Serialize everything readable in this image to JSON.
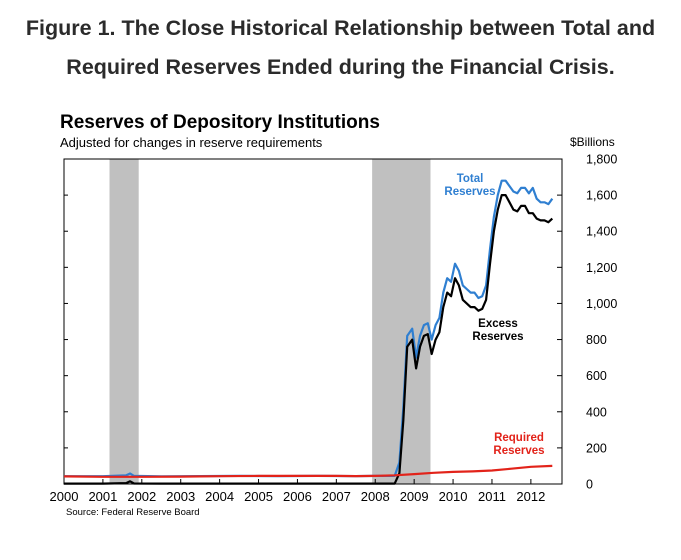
{
  "figure": {
    "title_line1": "Figure 1. The Close Historical Relationship between Total and",
    "title_line2": "Required Reserves Ended during the Financial Crisis."
  },
  "chart_data": {
    "type": "line",
    "title": "Reserves of Depository Institutions",
    "subtitle": "Adjusted for changes in reserve requirements",
    "y_unit": "$Billions",
    "source": "Source:  Federal Reserve Board",
    "xlim": [
      2000.0,
      2012.8
    ],
    "ylim": [
      0,
      1800
    ],
    "x_ticks": [
      2000,
      2001,
      2002,
      2003,
      2004,
      2005,
      2006,
      2007,
      2008,
      2009,
      2010,
      2011,
      2012
    ],
    "x_tick_labels": [
      "2000",
      "2001",
      "2002",
      "2003",
      "2004",
      "2005",
      "2006",
      "2007",
      "2008",
      "2009",
      "2010",
      "2011",
      "2012"
    ],
    "y_ticks": [
      0,
      200,
      400,
      600,
      800,
      1000,
      1200,
      1400,
      1600,
      1800
    ],
    "y_tick_labels": [
      "0",
      "200",
      "400",
      "600",
      "800",
      "1,000",
      "1,200",
      "1,400",
      "1,600",
      "1,800"
    ],
    "y_axis_side": "right",
    "grid": false,
    "recessions": [
      {
        "start": 2001.17,
        "end": 2001.92
      },
      {
        "start": 2007.92,
        "end": 2009.42
      }
    ],
    "series": [
      {
        "name": "Total Reserves",
        "color": "#2f7fd1",
        "x": [
          2000.0,
          2001.0,
          2001.6,
          2001.7,
          2001.8,
          2002.5,
          2003.5,
          2004.5,
          2005.5,
          2006.5,
          2007.5,
          2008.0,
          2008.5,
          2008.62,
          2008.72,
          2008.82,
          2008.95,
          2009.05,
          2009.15,
          2009.25,
          2009.35,
          2009.45,
          2009.55,
          2009.65,
          2009.75,
          2009.85,
          2009.95,
          2010.05,
          2010.15,
          2010.25,
          2010.35,
          2010.45,
          2010.55,
          2010.65,
          2010.75,
          2010.85,
          2010.95,
          2011.05,
          2011.15,
          2011.25,
          2011.35,
          2011.45,
          2011.55,
          2011.65,
          2011.75,
          2011.85,
          2011.95,
          2012.05,
          2012.15,
          2012.25,
          2012.35,
          2012.45,
          2012.55
        ],
        "y": [
          43,
          43,
          48,
          58,
          45,
          42,
          44,
          45,
          44,
          45,
          44,
          45,
          45,
          120,
          420,
          820,
          860,
          700,
          820,
          880,
          890,
          800,
          880,
          920,
          1060,
          1140,
          1120,
          1220,
          1180,
          1100,
          1080,
          1060,
          1060,
          1030,
          1040,
          1100,
          1300,
          1480,
          1600,
          1680,
          1680,
          1650,
          1620,
          1610,
          1640,
          1640,
          1610,
          1640,
          1580,
          1560,
          1560,
          1550,
          1580
        ]
      },
      {
        "name": "Excess Reserves",
        "color": "#000000",
        "x": [
          2000.0,
          2001.0,
          2001.6,
          2001.7,
          2001.8,
          2002.5,
          2003.5,
          2004.5,
          2005.5,
          2006.5,
          2007.5,
          2008.0,
          2008.5,
          2008.62,
          2008.72,
          2008.82,
          2008.95,
          2009.05,
          2009.15,
          2009.25,
          2009.35,
          2009.45,
          2009.55,
          2009.65,
          2009.75,
          2009.85,
          2009.95,
          2010.05,
          2010.15,
          2010.25,
          2010.35,
          2010.45,
          2010.55,
          2010.65,
          2010.75,
          2010.85,
          2010.95,
          2011.05,
          2011.15,
          2011.25,
          2011.35,
          2011.45,
          2011.55,
          2011.65,
          2011.75,
          2011.85,
          2011.95,
          2012.05,
          2012.15,
          2012.25,
          2012.35,
          2012.45,
          2012.55
        ],
        "y": [
          2,
          2,
          5,
          15,
          3,
          2,
          2,
          2,
          2,
          2,
          2,
          2,
          2,
          60,
          350,
          760,
          800,
          640,
          760,
          820,
          830,
          720,
          800,
          840,
          980,
          1060,
          1040,
          1140,
          1100,
          1020,
          1000,
          980,
          980,
          960,
          970,
          1020,
          1220,
          1400,
          1520,
          1600,
          1600,
          1560,
          1520,
          1510,
          1540,
          1540,
          1500,
          1500,
          1470,
          1460,
          1460,
          1450,
          1470
        ]
      },
      {
        "name": "Required Reserves",
        "color": "#e2231a",
        "x": [
          2000.0,
          2001.0,
          2002.0,
          2003.0,
          2004.0,
          2005.0,
          2006.0,
          2007.0,
          2007.5,
          2008.0,
          2008.5,
          2009.0,
          2009.5,
          2010.0,
          2010.5,
          2011.0,
          2011.5,
          2012.0,
          2012.55
        ],
        "y": [
          42,
          40,
          40,
          41,
          43,
          45,
          45,
          45,
          44,
          45,
          48,
          55,
          62,
          67,
          70,
          75,
          85,
          95,
          100
        ]
      }
    ],
    "annotations": [
      {
        "text_line1": "Total",
        "text_line2": "Reserves",
        "color": "#2f7fd1"
      },
      {
        "text_line1": "Excess",
        "text_line2": "Reserves",
        "color": "#000000"
      },
      {
        "text_line1": "Required",
        "text_line2": "Reserves",
        "color": "#e2231a"
      }
    ]
  }
}
